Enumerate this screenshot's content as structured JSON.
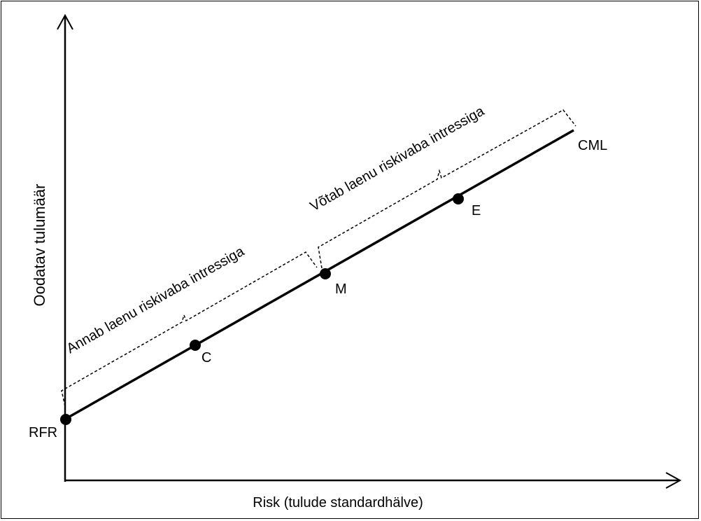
{
  "diagram": {
    "y_axis_label": "Oodatav tulumäär",
    "x_axis_label": "Risk (tulude standardhälve)",
    "line_label": "CML",
    "points": [
      {
        "id": "rfr",
        "label": "RFR"
      },
      {
        "id": "c",
        "label": "C"
      },
      {
        "id": "m",
        "label": "M"
      },
      {
        "id": "e",
        "label": "E"
      }
    ],
    "brackets": {
      "lending": "Annab laenu riskivaba intressiga",
      "borrowing": "Võtab laenu riskivaba intressiga"
    },
    "colors": {
      "line": "#000000",
      "background": "#ffffff"
    }
  }
}
